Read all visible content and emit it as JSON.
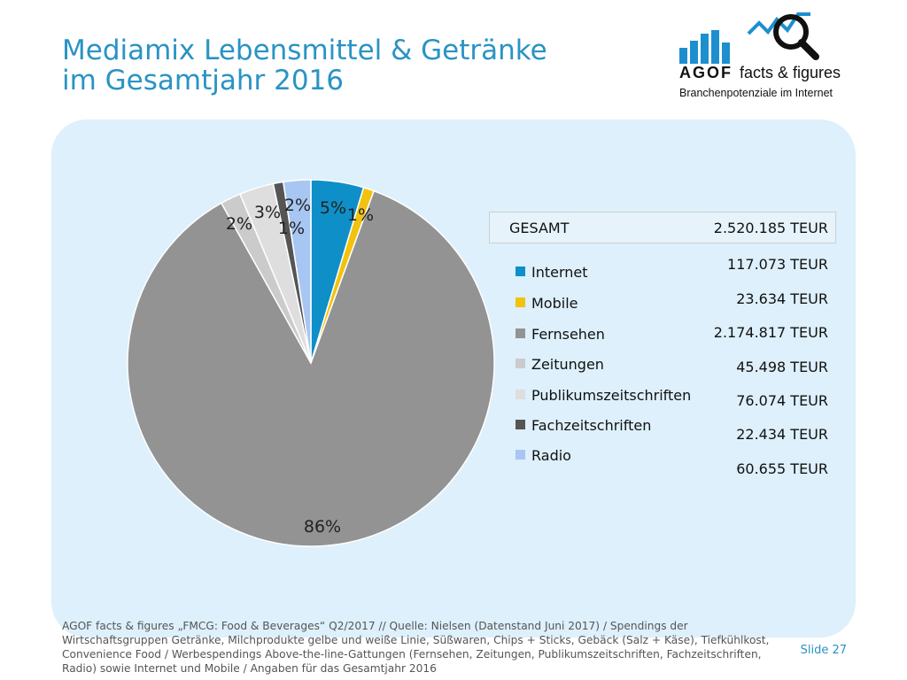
{
  "header": {
    "title_line1": "Mediamix Lebensmittel & Getränke",
    "title_line2": "im Gesamtjahr 2016"
  },
  "logo": {
    "brand": "AGOF",
    "product": "facts & figures",
    "tagline": "Branchenpotenziale im Internet",
    "colors": {
      "blue": "#1c8fcf",
      "black": "#111111"
    }
  },
  "summary": {
    "label": "GESAMT",
    "value": "2.520.185 TEUR"
  },
  "chart_data": {
    "type": "pie",
    "categories": [
      "Internet",
      "Mobile",
      "Fernsehen",
      "Zeitungen",
      "Publikumszeitschriften",
      "Fachzeitschriften",
      "Radio"
    ],
    "values": [
      117073,
      23634,
      2174817,
      45498,
      76074,
      22434,
      60655
    ],
    "value_labels": [
      "117.073 TEUR",
      "23.634 TEUR",
      "2.174.817 TEUR",
      "45.498 TEUR",
      "76.074 TEUR",
      "22.434 TEUR",
      "60.655 TEUR"
    ],
    "percent_labels": [
      "5%",
      "1%",
      "86%",
      "2%",
      "3%",
      "1%",
      "2%"
    ],
    "colors": [
      "#0f8fc7",
      "#f2c20f",
      "#939393",
      "#cbcbcb",
      "#dedede",
      "#555555",
      "#a8c6f2"
    ],
    "unit": "TEUR",
    "legend_position": "right"
  },
  "footer": {
    "source": "AGOF facts & figures „FMCG: Food & Beverages“ Q2/2017 // Quelle: Nielsen (Datenstand Juni 2017) / Spendings der Wirtschaftsgruppen Getränke, Milchprodukte gelbe und weiße Linie, Süßwaren, Chips + Sticks, Gebäck (Salz + Käse), Tiefkühlkost, Convenience Food / Werbespendings Above-the-line-Gattungen (Fernsehen, Zeitungen, Publikumszeitschriften, Fachzeitschriften, Radio) sowie Internet und Mobile / Angaben für das Gesamtjahr 2016",
    "slide": "Slide 27"
  }
}
